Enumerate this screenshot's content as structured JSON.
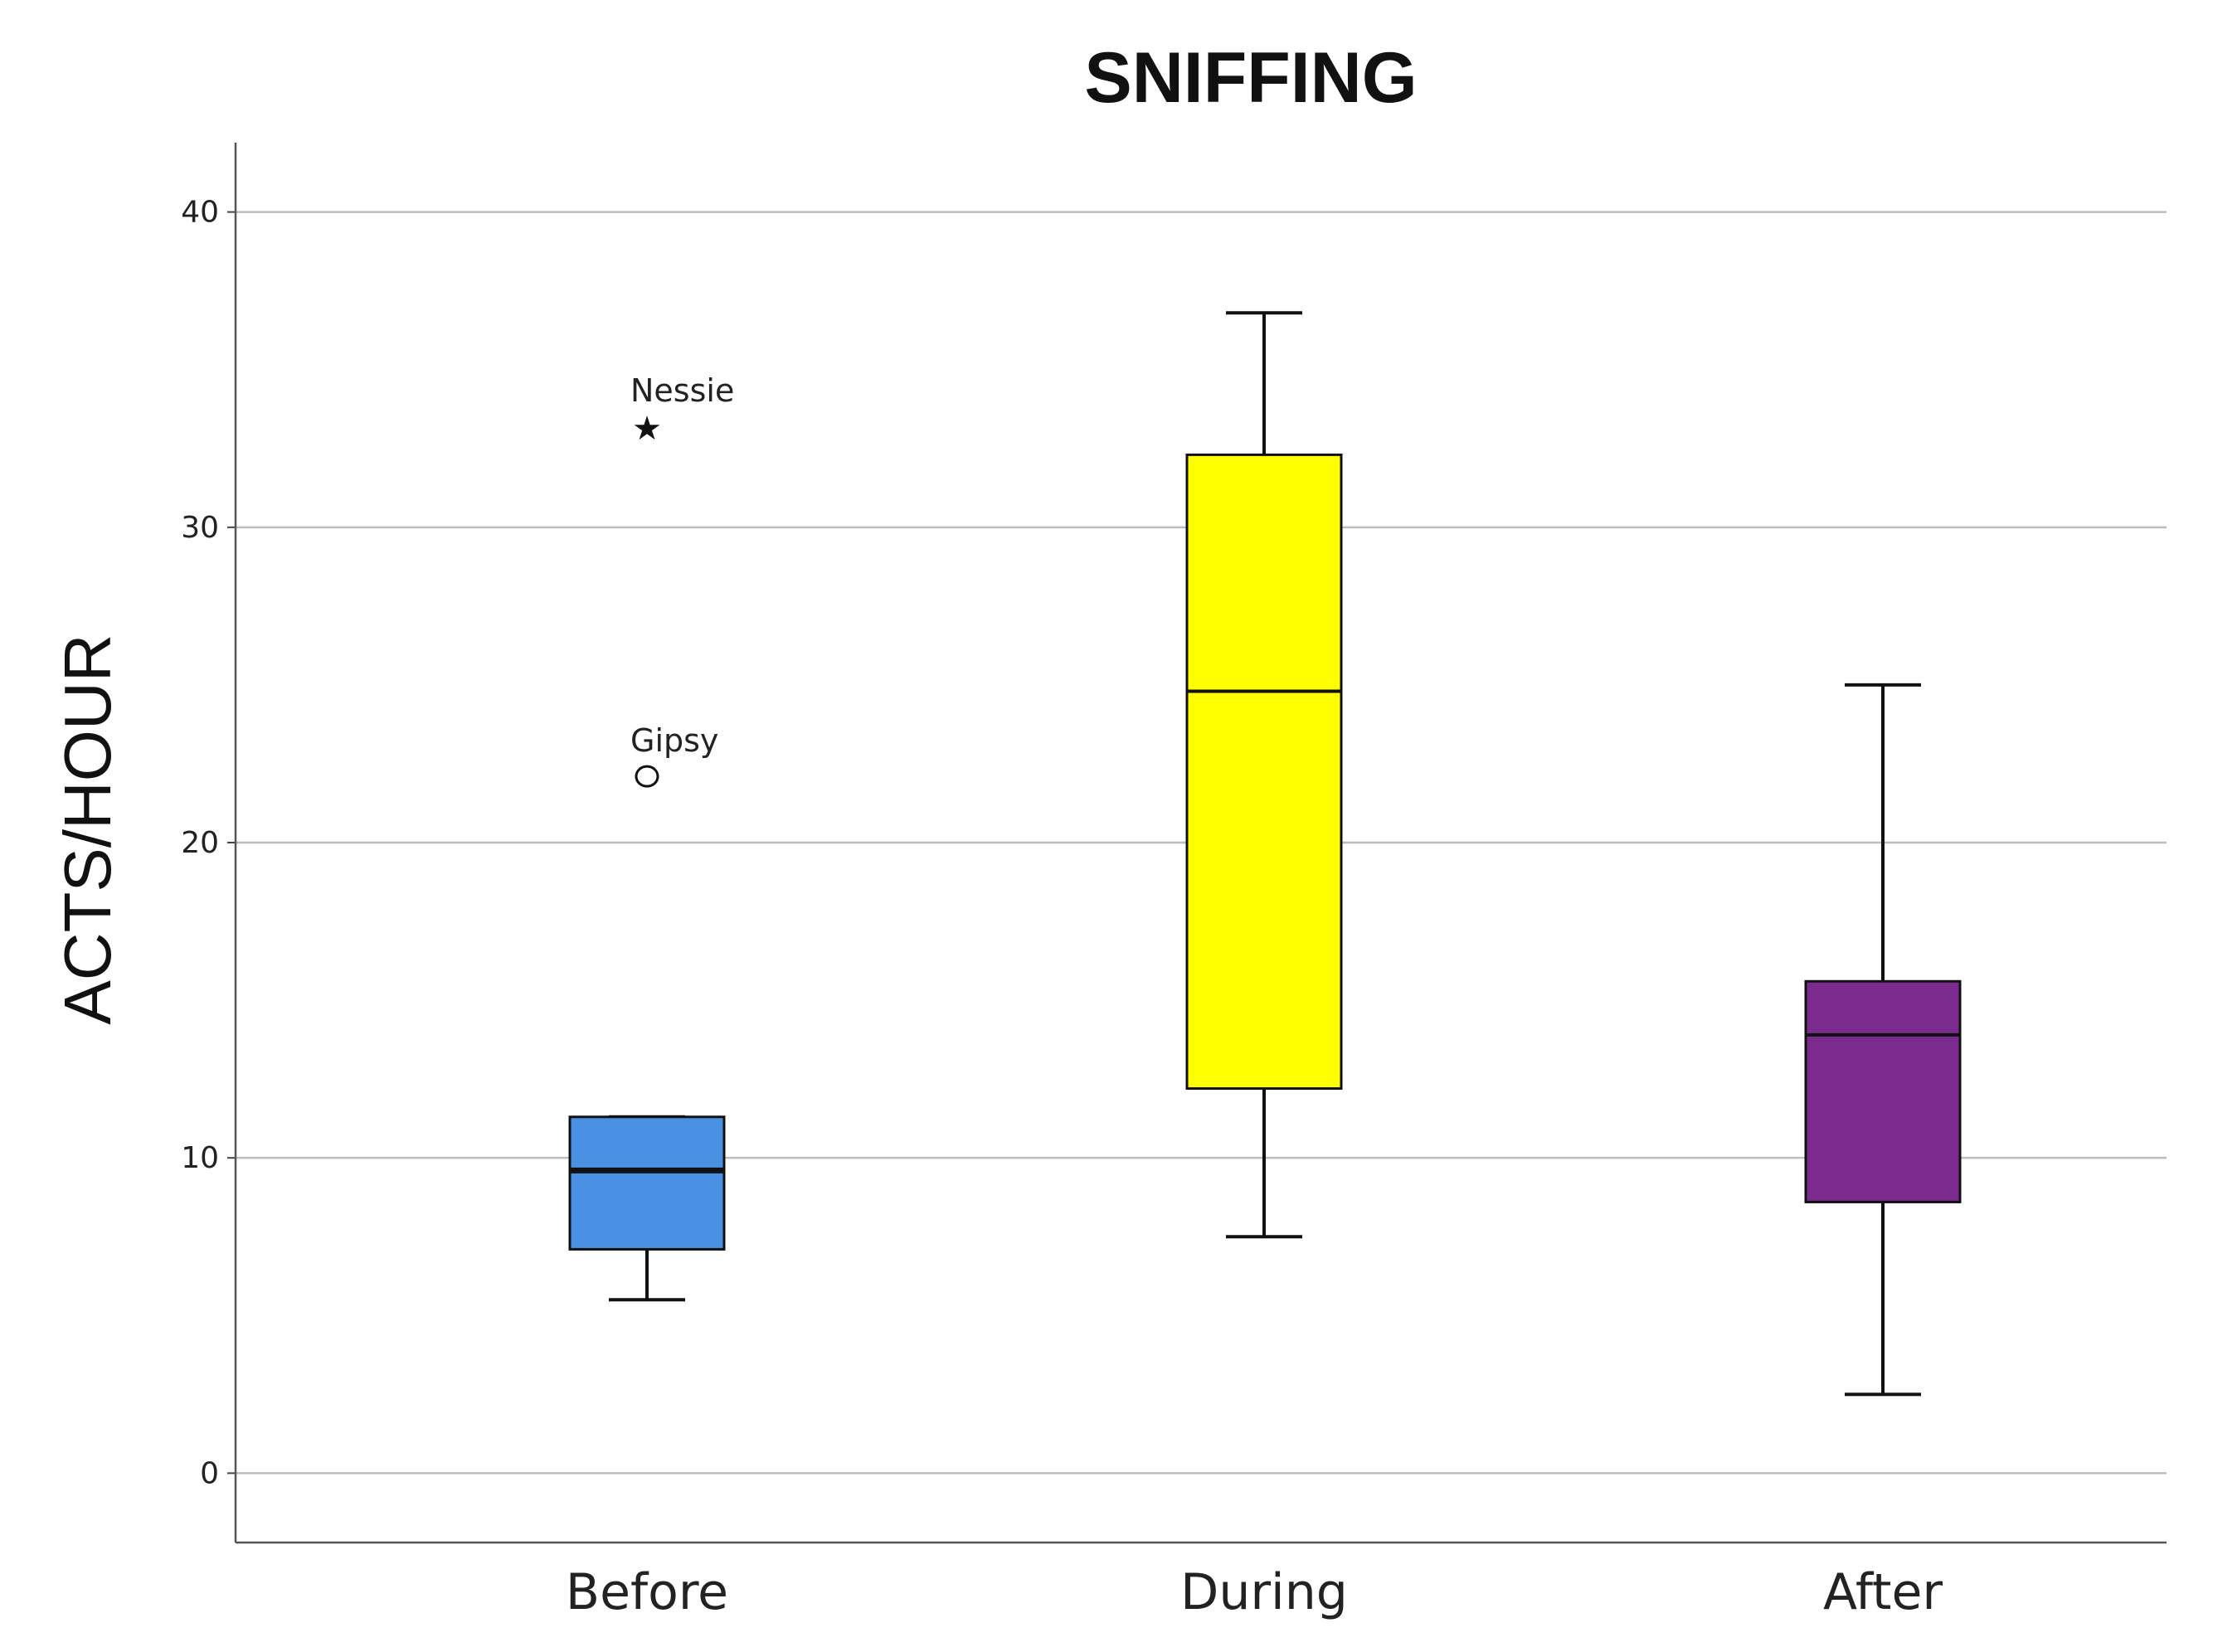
{
  "chart_data": {
    "type": "box",
    "title": "SNIFFING",
    "xlabel": "",
    "ylabel": "ACTS/HOUR",
    "ylim": [
      -2.2,
      42.2
    ],
    "yticks": [
      "0",
      "10",
      "20",
      "30",
      "40"
    ],
    "ytick_values": [
      0,
      10,
      20,
      30,
      40
    ],
    "grid": true,
    "categories": [
      "Before",
      "During",
      "After"
    ],
    "series": [
      {
        "category": "Before",
        "color": "#4a90e2",
        "min": 5.5,
        "q1": 7.1,
        "median": 9.6,
        "q3": 11.3,
        "max": 11.3,
        "outliers": [
          {
            "label": "Nessie",
            "value": 33.2,
            "marker": "star"
          },
          {
            "label": "Gipsy",
            "value": 22.1,
            "marker": "circle"
          }
        ]
      },
      {
        "category": "During",
        "color": "#ffff00",
        "min": 7.5,
        "q1": 12.2,
        "median": 24.8,
        "q3": 32.3,
        "max": 36.8,
        "outliers": []
      },
      {
        "category": "After",
        "color": "#7b2a8e",
        "min": 2.5,
        "q1": 8.6,
        "median": 13.9,
        "q3": 15.6,
        "max": 25.0,
        "outliers": []
      }
    ]
  }
}
